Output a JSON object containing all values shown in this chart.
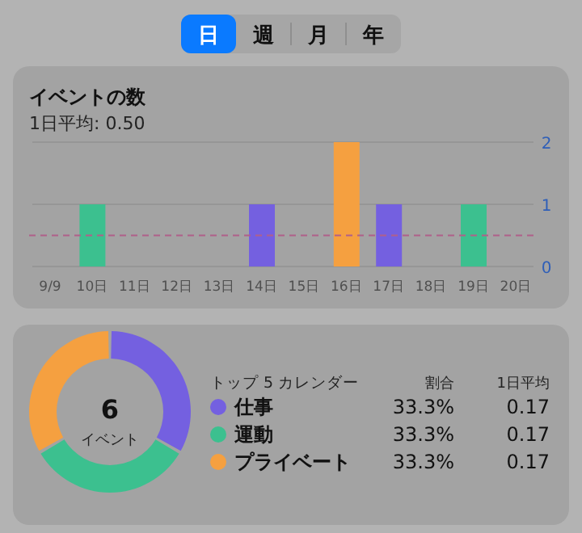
{
  "chart_data": [
    {
      "type": "other",
      "annotations": [
        "日",
        "週",
        "月",
        "年"
      ]
    },
    {
      "type": "bar",
      "title": "イベントの数",
      "subtitle": "1日平均: 0.50",
      "categories": [
        "9/9",
        "10日",
        "11日",
        "12日",
        "13日",
        "14日",
        "15日",
        "16日",
        "17日",
        "18日",
        "19日",
        "20日"
      ],
      "values": [
        0,
        1,
        0,
        0,
        0,
        1,
        0,
        2,
        1,
        0,
        1,
        0
      ],
      "colors": [
        "#7460e0",
        "#3cc08f",
        "#7460e0",
        "#7460e0",
        "#7460e0",
        "#7460e0",
        "#7460e0",
        "#f5a040",
        "#7460e0",
        "#7460e0",
        "#3cc08f",
        "#7460e0"
      ],
      "ylim": [
        0,
        2
      ],
      "yticks": [
        0,
        1,
        2
      ],
      "grid": "y",
      "ref_lines": [
        {
          "axis": "y",
          "value": 0.5,
          "color": "#b0608a",
          "line_style": "dashed"
        }
      ]
    },
    {
      "type": "donut",
      "legend_title": "トップ 5 カレンダー",
      "legend": "right",
      "categories": [
        "仕事",
        "運動",
        "プライベート"
      ],
      "values": [
        33.3,
        33.3,
        33.3
      ],
      "colors": [
        "#7460e0",
        "#3cc08f",
        "#f5a040"
      ],
      "value_labels": [
        "33.3%",
        "33.3%",
        "33.3%"
      ],
      "annotations": [
        "6",
        "イベント",
        "割合",
        "1日平均",
        "0.17",
        "0.17",
        "0.17"
      ]
    }
  ]
}
